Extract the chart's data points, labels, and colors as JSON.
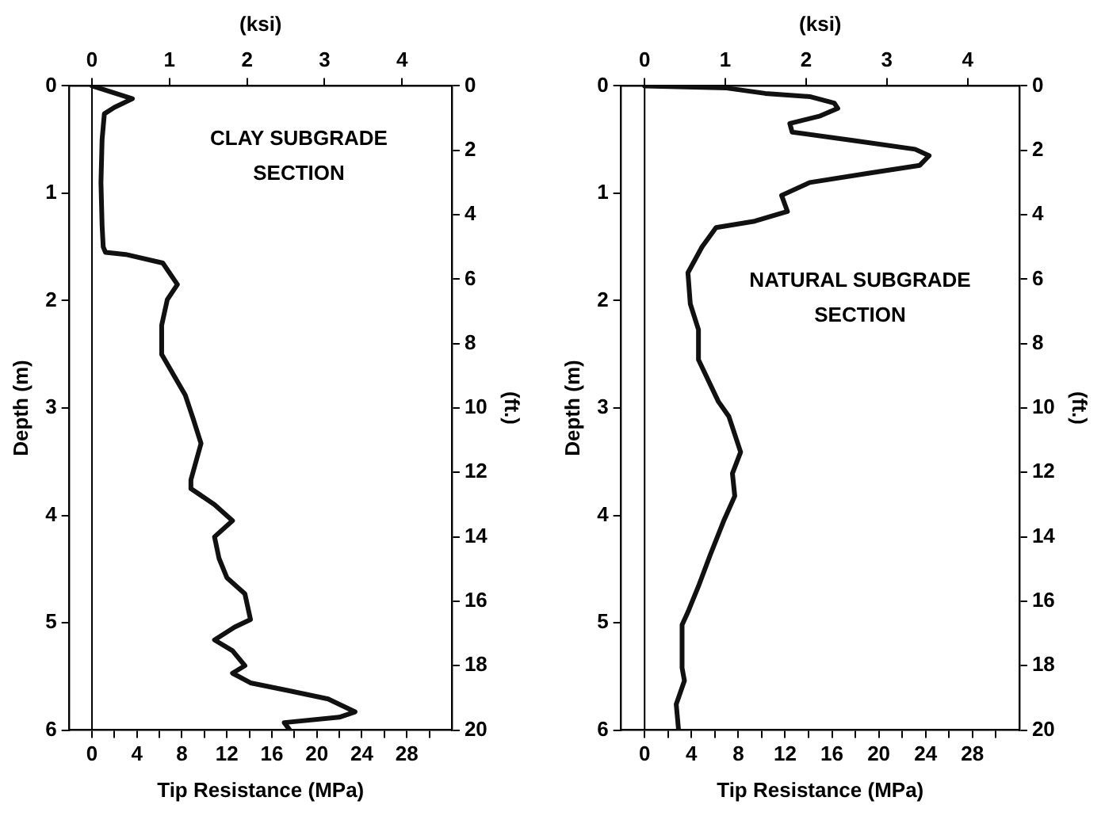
{
  "chart_data": [
    {
      "type": "line",
      "xlabel": "Tip Resistance (MPa)",
      "x2label": "(ksi)",
      "ylabel": "Depth (m)",
      "y2label": "(ft.)",
      "annotations": [
        "CLAY SUBGRADE\nSECTION"
      ],
      "grid": false,
      "legend": false,
      "xlim": [
        -2,
        32
      ],
      "xticks": [
        0,
        {
          "value": 2,
          "label": null
        },
        4,
        {
          "value": 6,
          "label": null
        },
        8,
        {
          "value": 10,
          "label": null
        },
        12,
        {
          "value": 14,
          "label": null
        },
        16,
        {
          "value": 18,
          "label": null
        },
        20,
        {
          "value": 22,
          "label": null
        },
        24,
        {
          "value": 26,
          "label": null
        },
        28,
        {
          "value": 30,
          "label": null
        }
      ],
      "x2lim": [
        -0.29,
        4.64
      ],
      "x2ticks": [
        0,
        1,
        2,
        3,
        4
      ],
      "ylim": [
        6,
        0
      ],
      "yticks": [
        0,
        1,
        2,
        3,
        4,
        5,
        6
      ],
      "y2lim": [
        20,
        0
      ],
      "y2ticks": [
        0,
        2,
        4,
        6,
        8,
        10,
        12,
        14,
        16,
        18,
        20
      ],
      "ref_lines": [
        {
          "axis": "x",
          "value": 0,
          "color": "#000000"
        }
      ],
      "series": [
        {
          "color": "#111111",
          "x": [
            0,
            1.5,
            3.6,
            2,
            1.1,
            0.9,
            0.8,
            0.9,
            1,
            1.2,
            3,
            6.3,
            7.6,
            6.7,
            6.2,
            6.2,
            8.3,
            9,
            9.7,
            8.8,
            8.8,
            10.9,
            12.5,
            10.9,
            11.3,
            12,
            13.6,
            14.1,
            12.7,
            10.9,
            12.5,
            13.6,
            12.5,
            14.1,
            17.4,
            21,
            23.4,
            22,
            17.1,
            17.6
          ],
          "values": [
            0,
            0.05,
            0.12,
            0.2,
            0.26,
            0.5,
            0.9,
            1.3,
            1.5,
            1.55,
            1.57,
            1.65,
            1.85,
            1.99,
            2.23,
            2.5,
            2.88,
            3.1,
            3.33,
            3.67,
            3.75,
            3.9,
            4.05,
            4.2,
            4.4,
            4.58,
            4.73,
            4.97,
            5.04,
            5.16,
            5.26,
            5.4,
            5.47,
            5.56,
            5.63,
            5.71,
            5.83,
            5.88,
            5.93,
            6
          ]
        }
      ]
    },
    {
      "type": "line",
      "xlabel": "Tip Resistance (MPa)",
      "x2label": "(ksi)",
      "ylabel": "Depth (m)",
      "y2label": "(ft.)",
      "annotations": [
        "NATURAL SUBGRADE\nSECTION"
      ],
      "grid": false,
      "legend": false,
      "xlim": [
        -2,
        32
      ],
      "xticks": [
        0,
        {
          "value": 2,
          "label": null
        },
        4,
        {
          "value": 6,
          "label": null
        },
        8,
        {
          "value": 10,
          "label": null
        },
        12,
        {
          "value": 14,
          "label": null
        },
        16,
        {
          "value": 18,
          "label": null
        },
        20,
        {
          "value": 22,
          "label": null
        },
        24,
        {
          "value": 26,
          "label": null
        },
        28,
        {
          "value": 30,
          "label": null
        }
      ],
      "x2lim": [
        -0.29,
        4.64
      ],
      "x2ticks": [
        0,
        1,
        2,
        3,
        4
      ],
      "ylim": [
        6,
        0
      ],
      "yticks": [
        0,
        1,
        2,
        3,
        4,
        5,
        6
      ],
      "y2lim": [
        20,
        0
      ],
      "y2ticks": [
        0,
        2,
        4,
        6,
        8,
        10,
        12,
        14,
        16,
        18,
        20
      ],
      "ref_lines": [
        {
          "axis": "x",
          "value": 0,
          "color": "#000000"
        }
      ],
      "series": [
        {
          "color": "#111111",
          "x": [
            0,
            7,
            10.3,
            14.1,
            16.2,
            16.5,
            15,
            12.4,
            12.6,
            17.9,
            23.1,
            24.3,
            23.5,
            19.3,
            14.1,
            11.7,
            12.2,
            9.4,
            6.1,
            4.9,
            3.7,
            3.9,
            4.6,
            4.6,
            6.3,
            7.2,
            8.2,
            7.5,
            7.7,
            6.8,
            5.6,
            4.6,
            3.7,
            3.2,
            3.2,
            3.4,
            2.7,
            2.9
          ],
          "values": [
            0,
            0.02,
            0.07,
            0.1,
            0.16,
            0.21,
            0.28,
            0.35,
            0.43,
            0.51,
            0.59,
            0.65,
            0.74,
            0.81,
            0.9,
            1.02,
            1.17,
            1.26,
            1.32,
            1.5,
            1.74,
            2.03,
            2.27,
            2.55,
            2.94,
            3.08,
            3.41,
            3.61,
            3.82,
            4.04,
            4.37,
            4.66,
            4.9,
            5.02,
            5.42,
            5.54,
            5.76,
            6
          ]
        }
      ]
    }
  ]
}
